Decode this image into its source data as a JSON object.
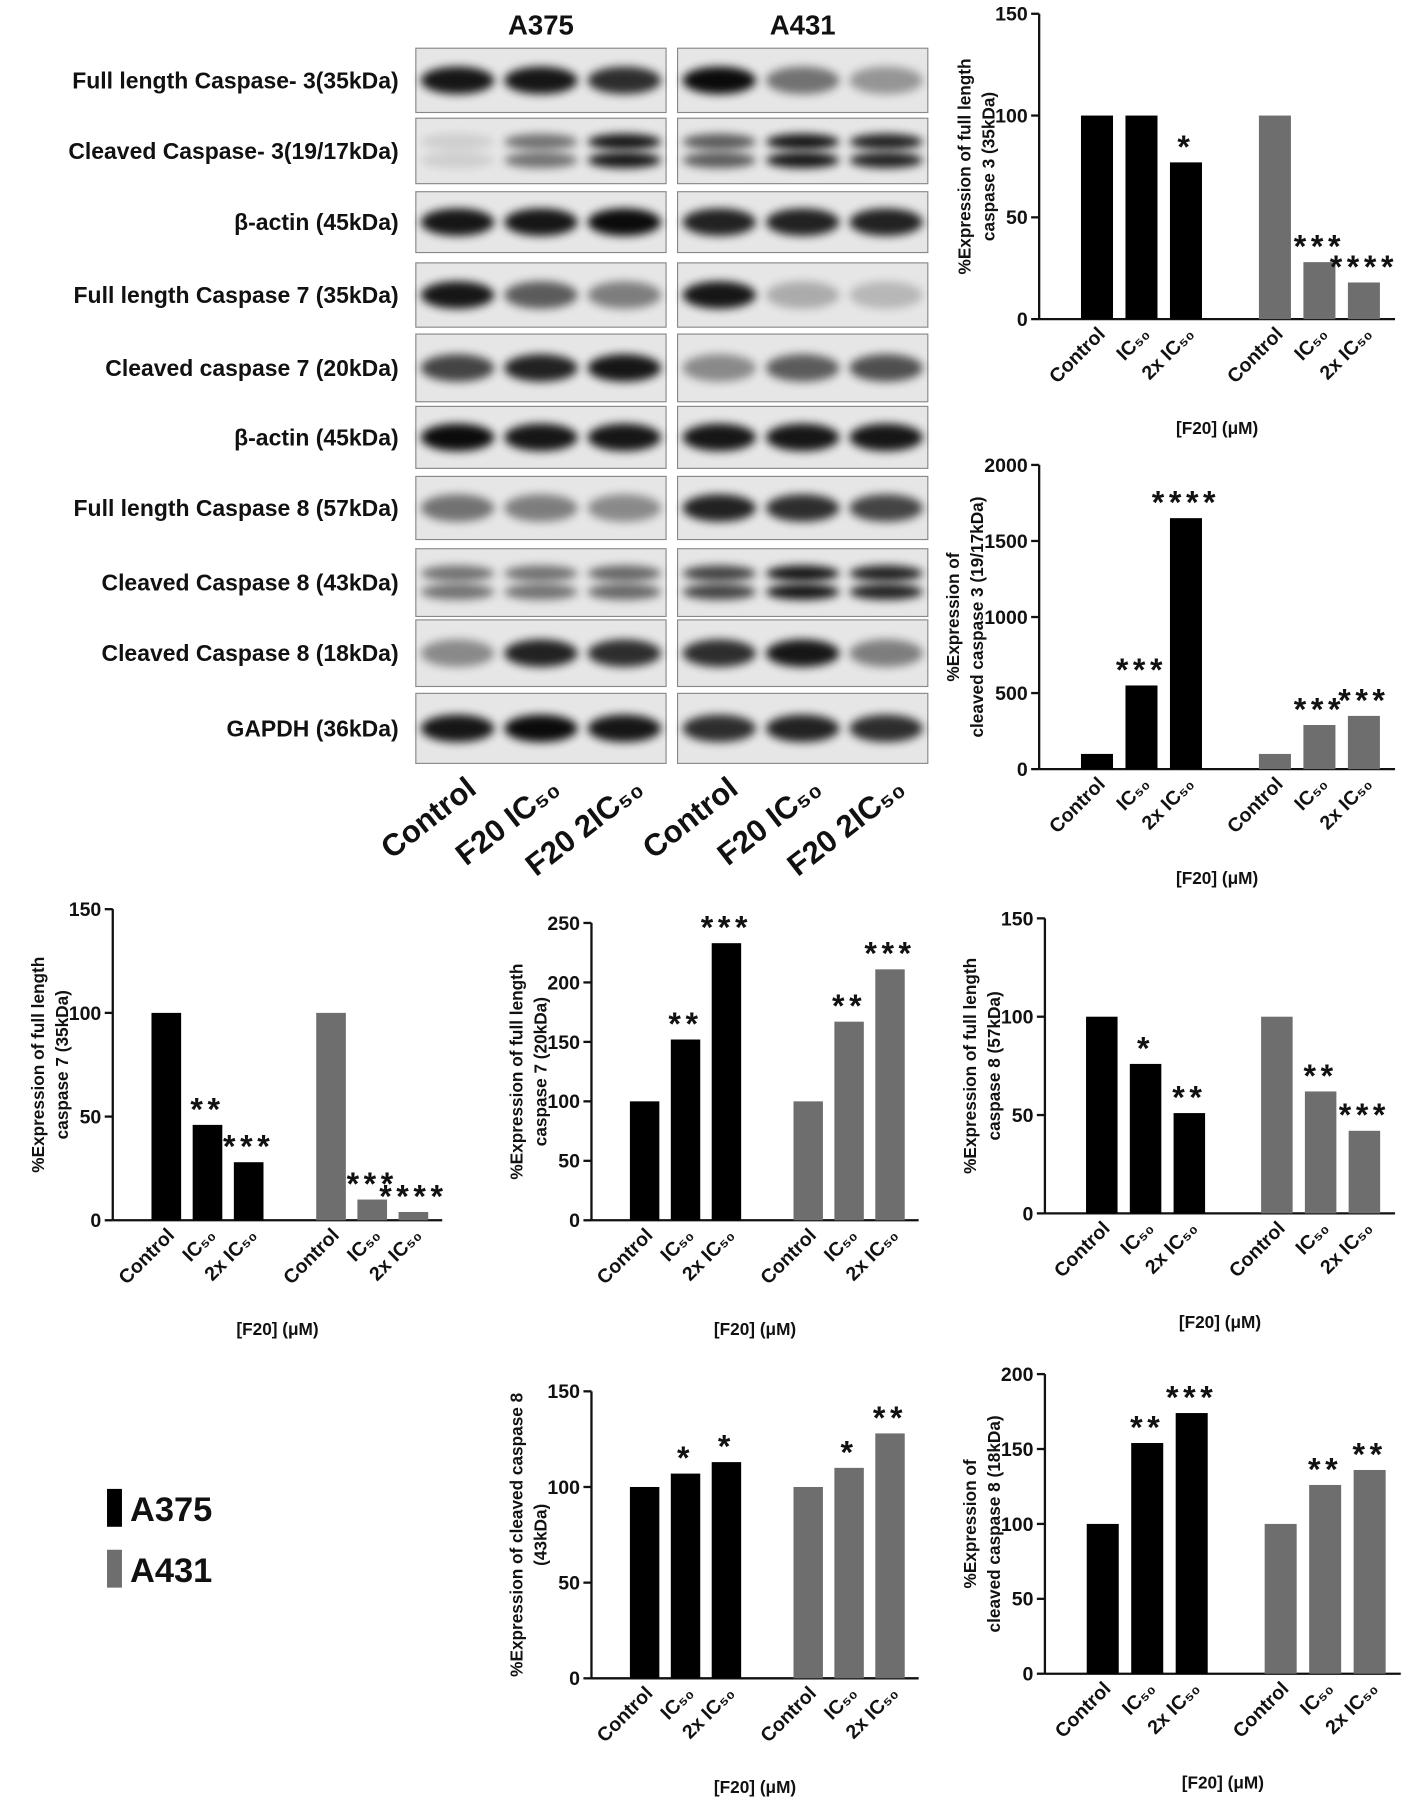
{
  "blot": {
    "columns": [
      "A375",
      "A431"
    ],
    "rows": [
      "Full length Caspase- 3(35kDa)",
      "Cleaved Caspase- 3(19/17kDa)",
      "β-actin (45kDa)",
      "Full length Caspase 7 (35kDa)",
      "Cleaved caspase 7 (20kDa)",
      "β-actin (45kDa)",
      "Full length Caspase 8 (57kDa)",
      "Cleaved Caspase 8 (43kDa)",
      "Cleaved Caspase 8 (18kDa)",
      "GAPDH (36kDa)"
    ],
    "lanes": [
      "Control",
      "F20 IC₅₀",
      "F20 2IC₅₀",
      "Control",
      "F20 IC₅₀",
      "F20 2IC₅₀"
    ]
  },
  "chart_data": [
    {
      "type": "bar",
      "ylabel": [
        "%Expression of full length",
        "caspase 3 (35kDa)"
      ],
      "xlabel": "[F20] (μM)",
      "categories": [
        "Control",
        "IC₅₀",
        "2x IC₅₀",
        "Control",
        "IC₅₀",
        "2x IC₅₀"
      ],
      "series": [
        {
          "name": "A375",
          "color": "#000000",
          "values": [
            100,
            100,
            77,
            null,
            null,
            null
          ],
          "significance": [
            null,
            null,
            "*",
            null,
            null,
            null
          ]
        },
        {
          "name": "A431",
          "color": "#6e6e6e",
          "values": [
            null,
            null,
            null,
            100,
            28,
            18
          ],
          "significance": [
            null,
            null,
            null,
            null,
            "***",
            "****"
          ]
        }
      ],
      "ylim": [
        0,
        150
      ],
      "yticks": [
        0,
        50,
        100,
        150
      ]
    },
    {
      "type": "bar",
      "ylabel": [
        "%Expression of",
        "cleaved caspase 3 (19/17kDa)"
      ],
      "xlabel": "[F20] (μM)",
      "categories": [
        "Control",
        "IC₅₀",
        "2x IC₅₀",
        "Control",
        "IC₅₀",
        "2x IC₅₀"
      ],
      "series": [
        {
          "name": "A375",
          "color": "#000000",
          "values": [
            100,
            550,
            1650,
            null,
            null,
            null
          ],
          "significance": [
            null,
            "***",
            "****",
            null,
            null,
            null
          ]
        },
        {
          "name": "A431",
          "color": "#6e6e6e",
          "values": [
            null,
            null,
            null,
            100,
            290,
            350
          ],
          "significance": [
            null,
            null,
            null,
            null,
            "***",
            "***"
          ]
        }
      ],
      "ylim": [
        0,
        2000
      ],
      "yticks": [
        0,
        500,
        1000,
        1500,
        2000
      ]
    },
    {
      "type": "bar",
      "ylabel": [
        "%Expression of full length",
        "caspase 7 (35kDa)"
      ],
      "xlabel": "[F20] (μM)",
      "categories": [
        "Control",
        "IC₅₀",
        "2x IC₅₀",
        "Control",
        "IC₅₀",
        "2x IC₅₀"
      ],
      "series": [
        {
          "name": "A375",
          "color": "#000000",
          "values": [
            100,
            46,
            28,
            null,
            null,
            null
          ],
          "significance": [
            null,
            "**",
            "***",
            null,
            null,
            null
          ]
        },
        {
          "name": "A431",
          "color": "#6e6e6e",
          "values": [
            null,
            null,
            null,
            100,
            10,
            4
          ],
          "significance": [
            null,
            null,
            null,
            null,
            "***",
            "****"
          ]
        }
      ],
      "ylim": [
        0,
        150
      ],
      "yticks": [
        0,
        50,
        100,
        150
      ]
    },
    {
      "type": "bar",
      "ylabel": [
        "%Expression of full length",
        "caspase 7 (20kDa)"
      ],
      "xlabel": "[F20] (μM)",
      "categories": [
        "Control",
        "IC₅₀",
        "2x IC₅₀",
        "Control",
        "IC₅₀",
        "2x IC₅₀"
      ],
      "series": [
        {
          "name": "A375",
          "color": "#000000",
          "values": [
            100,
            152,
            233,
            null,
            null,
            null
          ],
          "significance": [
            null,
            "**",
            "***",
            null,
            null,
            null
          ]
        },
        {
          "name": "A431",
          "color": "#6e6e6e",
          "values": [
            null,
            null,
            null,
            100,
            167,
            211
          ],
          "significance": [
            null,
            null,
            null,
            null,
            "**",
            "***"
          ]
        }
      ],
      "ylim": [
        0,
        250
      ],
      "yticks": [
        0,
        50,
        100,
        150,
        200,
        250
      ]
    },
    {
      "type": "bar",
      "ylabel": [
        "%Expression of full length",
        "caspase 8 (57kDa)"
      ],
      "xlabel": "[F20] (μM)",
      "categories": [
        "Control",
        "IC₅₀",
        "2x IC₅₀",
        "Control",
        "IC₅₀",
        "2x IC₅₀"
      ],
      "series": [
        {
          "name": "A375",
          "color": "#000000",
          "values": [
            100,
            76,
            51,
            null,
            null,
            null
          ],
          "significance": [
            null,
            "*",
            "**",
            null,
            null,
            null
          ]
        },
        {
          "name": "A431",
          "color": "#6e6e6e",
          "values": [
            null,
            null,
            null,
            100,
            62,
            42
          ],
          "significance": [
            null,
            null,
            null,
            null,
            "**",
            "***"
          ]
        }
      ],
      "ylim": [
        0,
        150
      ],
      "yticks": [
        0,
        50,
        100,
        150
      ]
    },
    {
      "type": "bar",
      "ylabel": [
        "%Expression of cleaved caspase 8",
        "(43kDa)"
      ],
      "xlabel": "[F20] (μM)",
      "categories": [
        "Control",
        "IC₅₀",
        "2x IC₅₀",
        "Control",
        "IC₅₀",
        "2x IC₅₀"
      ],
      "series": [
        {
          "name": "A375",
          "color": "#000000",
          "values": [
            100,
            107,
            113,
            null,
            null,
            null
          ],
          "significance": [
            null,
            "*",
            "*",
            null,
            null,
            null
          ]
        },
        {
          "name": "A431",
          "color": "#6e6e6e",
          "values": [
            null,
            null,
            null,
            100,
            110,
            128
          ],
          "significance": [
            null,
            null,
            null,
            null,
            "*",
            "**"
          ]
        }
      ],
      "ylim": [
        0,
        150
      ],
      "yticks": [
        0,
        50,
        100,
        150
      ]
    },
    {
      "type": "bar",
      "ylabel": [
        "%Expression of",
        "cleaved caspase 8 (18kDa)"
      ],
      "xlabel": "[F20] (μM)",
      "categories": [
        "Control",
        "IC₅₀",
        "2x IC₅₀",
        "Control",
        "IC₅₀",
        "2x IC₅₀"
      ],
      "series": [
        {
          "name": "A375",
          "color": "#000000",
          "values": [
            100,
            154,
            174,
            null,
            null,
            null
          ],
          "significance": [
            null,
            "**",
            "***",
            null,
            null,
            null
          ]
        },
        {
          "name": "A431",
          "color": "#6e6e6e",
          "values": [
            null,
            null,
            null,
            100,
            126,
            136
          ],
          "significance": [
            null,
            null,
            null,
            null,
            "**",
            "**"
          ]
        }
      ],
      "ylim": [
        0,
        200
      ],
      "yticks": [
        0,
        50,
        100,
        150,
        200
      ]
    }
  ]
}
